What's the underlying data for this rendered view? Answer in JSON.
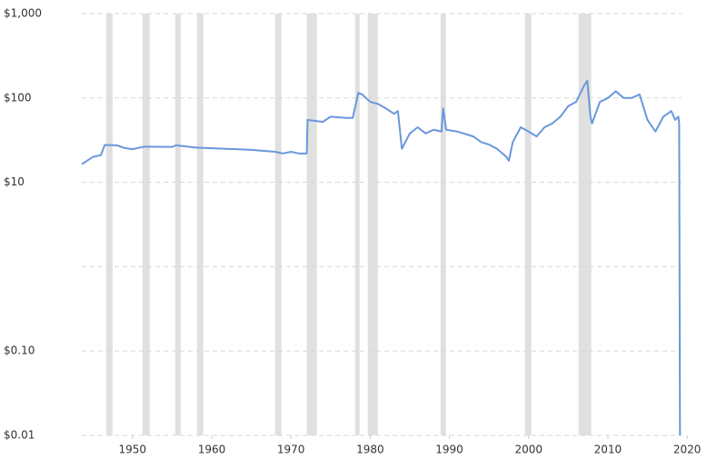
{
  "chart_data": {
    "type": "line",
    "log_y": true,
    "grid": true,
    "xlim": [
      1943.6,
      2019.3
    ],
    "ylim": [
      0.01,
      1000
    ],
    "yticks": [
      {
        "value": 1000,
        "label": "$1,000"
      },
      {
        "value": 100,
        "label": "$100"
      },
      {
        "value": 10,
        "label": "$10"
      },
      {
        "value": 1,
        "label": null
      },
      {
        "value": 0.1,
        "label": "$0.10"
      },
      {
        "value": 0.01,
        "label": "$0.01"
      }
    ],
    "xticks": [
      1950,
      1960,
      1970,
      1980,
      1990,
      2000,
      2010,
      2020
    ],
    "band_color": "#e0e0e0",
    "bands": [
      [
        1946.67,
        1947.48
      ],
      [
        1951.26,
        1952.18
      ],
      [
        1955.39,
        1956.08
      ],
      [
        1958.14,
        1958.94
      ],
      [
        1968.0,
        1968.8
      ],
      [
        1972.0,
        1973.28
      ],
      [
        1978.1,
        1978.67
      ],
      [
        1979.7,
        1980.96
      ],
      [
        1988.88,
        1989.56
      ],
      [
        1999.54,
        2000.34
      ],
      [
        2006.3,
        2007.9
      ]
    ],
    "series": [
      {
        "color": "#6a97dc",
        "x": [
          1943.6,
          1945,
          1946,
          1946.5,
          1948,
          1949,
          1950,
          1951.5,
          1955,
          1955.5,
          1958,
          1965,
          1968,
          1969,
          1970,
          1971,
          1972.0,
          1972.1,
          1974,
          1975,
          1977,
          1977.8,
          1978.5,
          1979,
          1980,
          1981,
          1982,
          1983,
          1983.5,
          1984,
          1985,
          1986,
          1987,
          1988,
          1989,
          1989.2,
          1989.6,
          1991,
          1993,
          1994,
          1995,
          1996,
          1997.2,
          1997.5,
          1998,
          1999,
          2000,
          2001,
          2002,
          2003,
          2004,
          2005,
          2006,
          2007,
          2007.4,
          2007.8,
          2008,
          2009,
          2010,
          2011,
          2012,
          2013,
          2014,
          2015,
          2016,
          2017,
          2018,
          2018.5,
          2018.9,
          2019.0,
          2019.1
        ],
        "values": [
          16.4,
          20,
          21,
          27.7,
          27.5,
          25.5,
          24.7,
          26.5,
          26.3,
          27.5,
          25.8,
          24.3,
          23,
          22,
          23,
          22,
          22,
          55,
          52,
          60,
          58,
          58,
          115,
          110,
          90,
          85,
          75,
          65,
          70,
          25,
          38,
          45,
          38,
          42,
          40,
          75,
          42,
          40,
          35,
          30,
          28,
          25,
          20,
          18,
          30,
          45,
          40,
          35,
          45,
          50,
          60,
          80,
          90,
          140,
          160,
          60,
          50,
          90,
          100,
          120,
          100,
          100,
          110,
          55,
          40,
          60,
          70,
          55,
          60,
          50,
          0.01
        ]
      }
    ]
  }
}
